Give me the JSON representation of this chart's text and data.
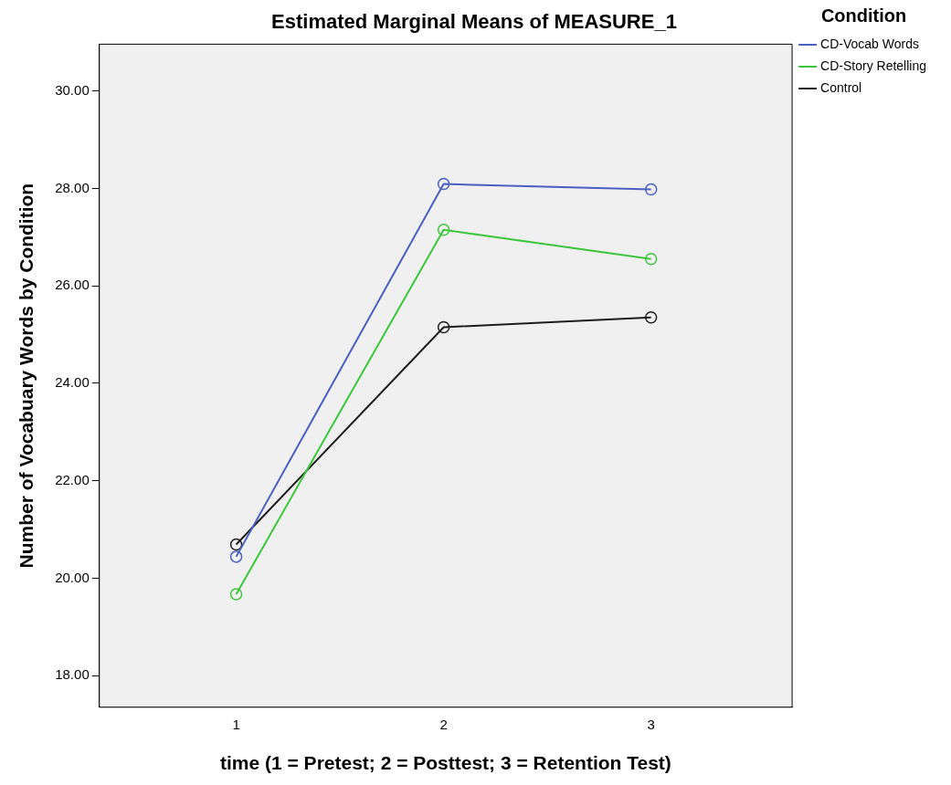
{
  "chart_data": {
    "type": "line",
    "title": "Estimated Marginal Means of MEASURE_1",
    "xlabel": "time (1 = Pretest; 2 = Posttest; 3 = Retention Test)",
    "ylabel": "Number of Vocabuary Words by Condition",
    "legend_title": "Condition",
    "legend": "top right",
    "marker": "circle",
    "line_style": "solid",
    "grid": false,
    "x": [
      1,
      2,
      3
    ],
    "xlim": [
      0.34,
      3.68
    ],
    "xticks": [
      1,
      2,
      3
    ],
    "ylim": [
      17.35,
      30.96
    ],
    "yticks": [
      {
        "value": 18,
        "label": "18.00"
      },
      {
        "value": 20,
        "label": "20.00"
      },
      {
        "value": 22,
        "label": "22.00"
      },
      {
        "value": 24,
        "label": "24.00"
      },
      {
        "value": 26,
        "label": "26.00"
      },
      {
        "value": 28,
        "label": "28.00"
      },
      {
        "value": 30,
        "label": "30.00"
      }
    ],
    "series": [
      {
        "name": "CD-Vocab Words",
        "color": "#4a5fc1",
        "values": [
          20.44,
          28.09,
          27.98
        ]
      },
      {
        "name": "CD-Story Retelling",
        "color": "#3cc63c",
        "values": [
          19.67,
          27.15,
          26.55
        ]
      },
      {
        "name": "Control",
        "color": "#1e1e1e",
        "values": [
          20.69,
          25.15,
          25.35
        ]
      }
    ]
  }
}
